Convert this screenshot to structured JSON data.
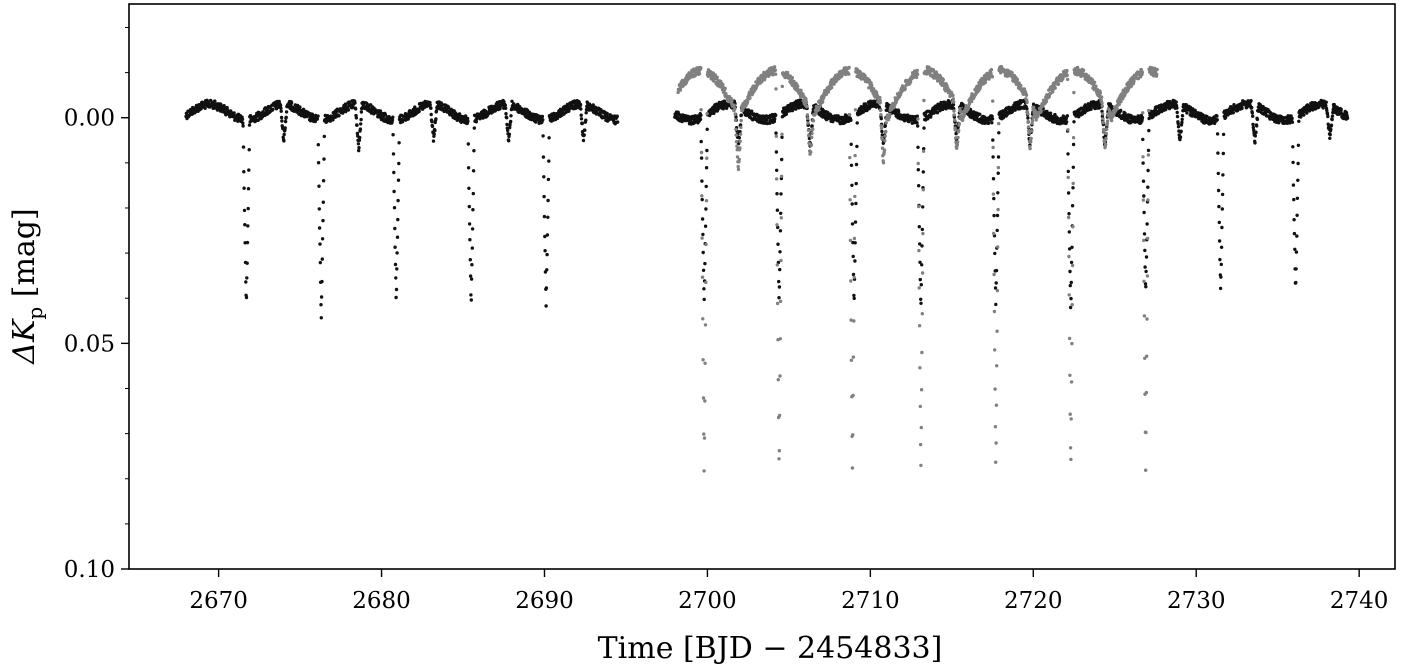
{
  "chart_data": {
    "type": "scatter",
    "title": "",
    "xlabel": "Time [BJD − 2454833]",
    "ylabel_prefix": "ΔK",
    "ylabel_subscript": "p",
    "ylabel_unit": " [mag]",
    "xlim": [
      2664.5,
      2742.2
    ],
    "ylim": [
      0.1,
      -0.0252
    ],
    "y_inverted": true,
    "grid": false,
    "legend": "none",
    "xticks": [
      2670,
      2680,
      2690,
      2700,
      2710,
      2720,
      2730,
      2740
    ],
    "xtick_labels": [
      "2670",
      "2680",
      "2690",
      "2700",
      "2710",
      "2720",
      "2730",
      "2740"
    ],
    "yticks": [
      0.0,
      0.05,
      0.1
    ],
    "ytick_labels": [
      "0.00",
      "0.05",
      "0.10"
    ],
    "yminor": [
      -0.02,
      -0.01,
      0.01,
      0.02,
      0.03,
      0.04,
      0.06,
      0.07,
      0.08,
      0.09
    ],
    "series": [
      {
        "color": "#111111",
        "baseline": 0.0,
        "baseline_ripple": 0.0035,
        "ripple_period": 4.55,
        "segments": [
          [
            2668.0,
            2694.5
          ],
          [
            2698.0,
            2739.3
          ]
        ],
        "eclipses": [
          {
            "t": 2671.7,
            "depth": 0.041
          },
          {
            "t": 2676.3,
            "depth": 0.044
          },
          {
            "t": 2680.9,
            "depth": 0.04
          },
          {
            "t": 2685.5,
            "depth": 0.041
          },
          {
            "t": 2690.1,
            "depth": 0.041
          },
          {
            "t": 2699.8,
            "depth": 0.041
          },
          {
            "t": 2704.4,
            "depth": 0.041
          },
          {
            "t": 2709.0,
            "depth": 0.042
          },
          {
            "t": 2713.1,
            "depth": 0.042
          },
          {
            "t": 2717.7,
            "depth": 0.041
          },
          {
            "t": 2722.3,
            "depth": 0.043
          },
          {
            "t": 2726.9,
            "depth": 0.039
          },
          {
            "t": 2731.5,
            "depth": 0.039
          },
          {
            "t": 2736.1,
            "depth": 0.039
          },
          {
            "t": 2674.0,
            "depth": 0.008
          },
          {
            "t": 2678.6,
            "depth": 0.01
          },
          {
            "t": 2683.2,
            "depth": 0.008
          },
          {
            "t": 2687.8,
            "depth": 0.008
          },
          {
            "t": 2692.4,
            "depth": 0.008
          },
          {
            "t": 2701.9,
            "depth": 0.009
          },
          {
            "t": 2706.3,
            "depth": 0.009
          },
          {
            "t": 2710.8,
            "depth": 0.009
          },
          {
            "t": 2715.3,
            "depth": 0.008
          },
          {
            "t": 2719.8,
            "depth": 0.009
          },
          {
            "t": 2724.4,
            "depth": 0.009
          },
          {
            "t": 2729.0,
            "depth": 0.008
          },
          {
            "t": 2733.6,
            "depth": 0.008
          },
          {
            "t": 2738.2,
            "depth": 0.007
          }
        ]
      },
      {
        "color": "#808080",
        "baseline": -0.0105,
        "hump_amplitude": 0.0105,
        "hump_period": 4.58,
        "segments": [
          [
            2698.2,
            2727.6
          ]
        ],
        "eclipses": [
          {
            "t": 2699.8,
            "depth": 0.089
          },
          {
            "t": 2704.4,
            "depth": 0.089
          },
          {
            "t": 2708.9,
            "depth": 0.089
          },
          {
            "t": 2713.1,
            "depth": 0.089
          },
          {
            "t": 2717.7,
            "depth": 0.089
          },
          {
            "t": 2722.3,
            "depth": 0.089
          },
          {
            "t": 2726.9,
            "depth": 0.088
          },
          {
            "t": 2701.9,
            "depth": 0.012
          },
          {
            "t": 2706.3,
            "depth": 0.01
          },
          {
            "t": 2710.8,
            "depth": 0.012
          },
          {
            "t": 2715.3,
            "depth": 0.01
          },
          {
            "t": 2719.8,
            "depth": 0.01
          },
          {
            "t": 2724.4,
            "depth": 0.01
          }
        ]
      }
    ]
  }
}
